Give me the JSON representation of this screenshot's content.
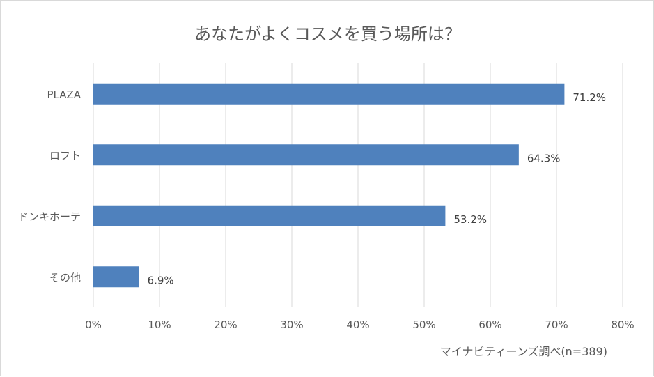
{
  "chart_data": {
    "type": "bar",
    "orientation": "horizontal",
    "title": "あなたがよくコスメを買う場所は？",
    "categories": [
      "PLAZA",
      "ロフト",
      "ドンキホーテ",
      "その他"
    ],
    "values": [
      71.2,
      64.3,
      53.2,
      6.9
    ],
    "value_labels": [
      "71.2%",
      "64.3%",
      "53.2%",
      "6.9%"
    ],
    "x_ticks": [
      "0%",
      "10%",
      "20%",
      "30%",
      "40%",
      "50%",
      "60%",
      "70%",
      "80%"
    ],
    "xlim": [
      0,
      80
    ],
    "grid": "vertical",
    "bar_color": "#4f81bd",
    "source_note": "マイナビティーンズ調べ(n=389)"
  }
}
